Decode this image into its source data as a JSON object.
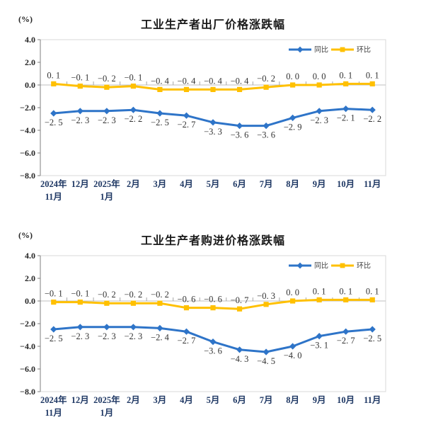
{
  "chart_data": [
    {
      "type": "line",
      "title": "工业生产者出厂价格涨跌幅",
      "ylabel": "(%)",
      "xlabel": "",
      "ylim": [
        -8.0,
        4.0
      ],
      "y_ticks": [
        "4.0",
        "2.0",
        "0.0",
        "-2.0",
        "-4.0",
        "-6.0",
        "-8.0"
      ],
      "grid": false,
      "legend_position": "top-right",
      "categories": [
        [
          "2024年",
          "11月"
        ],
        [
          "12月"
        ],
        [
          "2025年",
          "1月"
        ],
        [
          "2月"
        ],
        [
          "3月"
        ],
        [
          "4月"
        ],
        [
          "5月"
        ],
        [
          "6月"
        ],
        [
          "7月"
        ],
        [
          "8月"
        ],
        [
          "9月"
        ],
        [
          "10月"
        ],
        [
          "11月"
        ]
      ],
      "series": [
        {
          "id": "yoy",
          "name": "同比",
          "color": "#2E74C8",
          "marker": "diamond",
          "label_position": "below",
          "values": [
            -2.5,
            -2.3,
            -2.3,
            -2.2,
            -2.5,
            -2.7,
            -3.3,
            -3.6,
            -3.6,
            -2.9,
            -2.3,
            -2.1,
            -2.2
          ]
        },
        {
          "id": "mom",
          "name": "环比",
          "color": "#FFC000",
          "marker": "square",
          "label_position": "above",
          "values": [
            0.1,
            -0.1,
            -0.2,
            -0.1,
            -0.4,
            -0.4,
            -0.4,
            -0.4,
            -0.2,
            0.0,
            0.0,
            0.1,
            0.1
          ]
        }
      ]
    },
    {
      "type": "line",
      "title": "工业生产者购进价格涨跌幅",
      "ylabel": "(%)",
      "xlabel": "",
      "ylim": [
        -8.0,
        4.0
      ],
      "y_ticks": [
        "4.0",
        "2.0",
        "0.0",
        "-2.0",
        "-4.0",
        "-6.0",
        "-8.0"
      ],
      "grid": false,
      "legend_position": "top-right",
      "categories": [
        [
          "2024年",
          "11月"
        ],
        [
          "12月"
        ],
        [
          "2025年",
          "1月"
        ],
        [
          "2月"
        ],
        [
          "3月"
        ],
        [
          "4月"
        ],
        [
          "5月"
        ],
        [
          "6月"
        ],
        [
          "7月"
        ],
        [
          "8月"
        ],
        [
          "9月"
        ],
        [
          "10月"
        ],
        [
          "11月"
        ]
      ],
      "series": [
        {
          "id": "yoy",
          "name": "同比",
          "color": "#2E74C8",
          "marker": "diamond",
          "label_position": "below",
          "values": [
            -2.5,
            -2.3,
            -2.3,
            -2.3,
            -2.4,
            -2.7,
            -3.6,
            -4.3,
            -4.5,
            -4.0,
            -3.1,
            -2.7,
            -2.5
          ]
        },
        {
          "id": "mom",
          "name": "环比",
          "color": "#FFC000",
          "marker": "square",
          "label_position": "above",
          "values": [
            -0.1,
            -0.1,
            -0.2,
            -0.2,
            -0.2,
            -0.6,
            -0.6,
            -0.7,
            -0.3,
            0.0,
            0.1,
            0.1,
            0.1
          ]
        }
      ]
    }
  ],
  "style_colors": {
    "plot_border": "#D9D9D9",
    "zero_line": "#BFBFBF",
    "axis_line": "#7F7F7F",
    "boundary_tick": "#A6A6A6",
    "value_label": "#333333",
    "month_label": "#1F3864",
    "ytick_label": "#262626",
    "legend_text": "#404040"
  }
}
